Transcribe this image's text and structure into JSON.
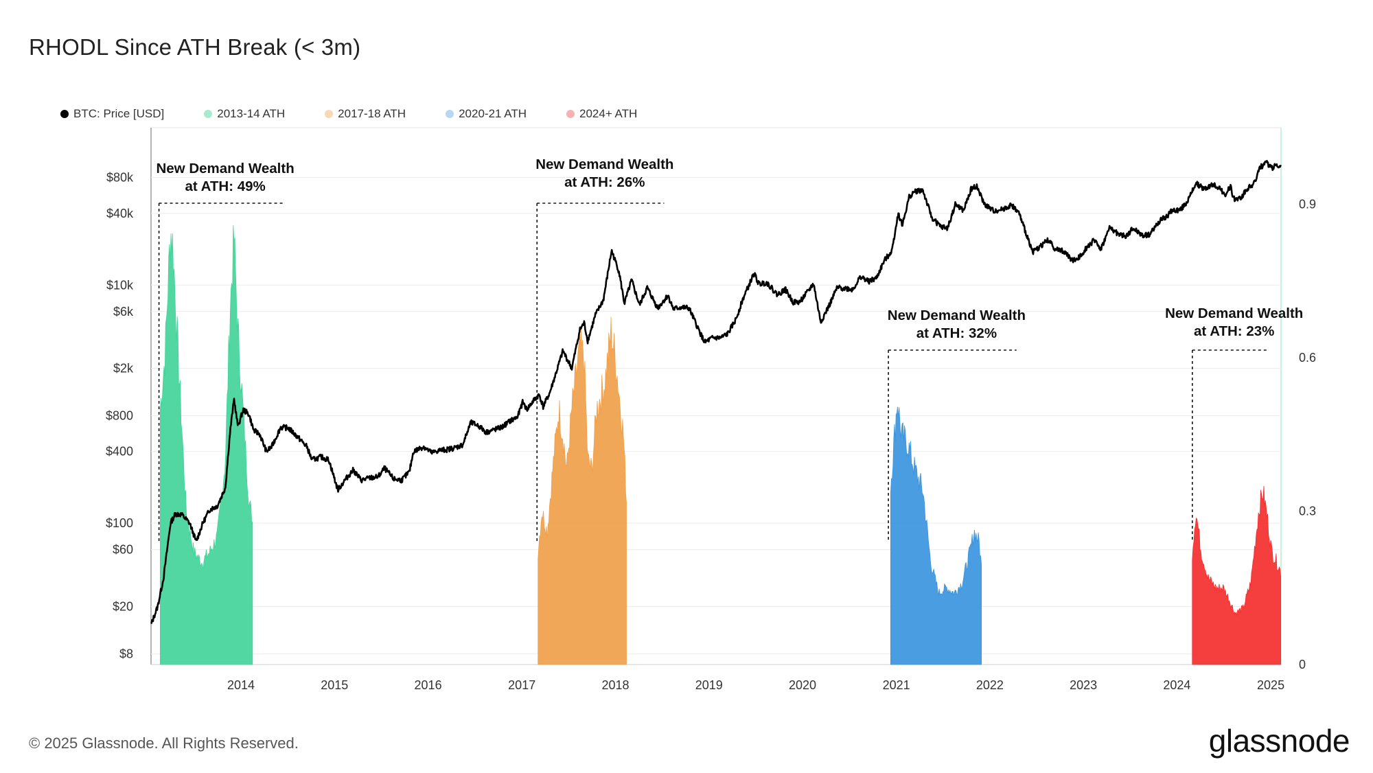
{
  "header": {
    "title": "RHODL Since ATH Break (< 3m)"
  },
  "legend": [
    {
      "label": "BTC: Price [USD]",
      "color": "#000000"
    },
    {
      "label": "2013-14 ATH",
      "color": "#a7ead0"
    },
    {
      "label": "2017-18 ATH",
      "color": "#f8d9b3"
    },
    {
      "label": "2020-21 ATH",
      "color": "#b6d7f0"
    },
    {
      "label": "2024+ ATH",
      "color": "#f6b1b1"
    }
  ],
  "footer": {
    "copyright": "© 2025 Glassnode. All Rights Reserved.",
    "brand": "glassnode"
  },
  "chart_data": {
    "type": "line",
    "x_range": [
      "2013-01-15",
      "2025-02-10"
    ],
    "x_ticks": [
      "2014",
      "2015",
      "2016",
      "2017",
      "2018",
      "2019",
      "2020",
      "2021",
      "2022",
      "2023",
      "2024",
      "2025"
    ],
    "y_left": {
      "label": "BTC: Price [USD]",
      "scale": "log",
      "ticks": [
        "$8",
        "$20",
        "$60",
        "$100",
        "$400",
        "$800",
        "$2k",
        "$6k",
        "$10k",
        "$40k",
        "$80k"
      ],
      "tick_values": [
        8,
        20,
        60,
        100,
        400,
        800,
        2000,
        6000,
        10000,
        40000,
        80000
      ]
    },
    "y_right": {
      "scale": "linear",
      "ticks": [
        "0",
        "0.3",
        "0.6",
        "0.9"
      ],
      "tick_values": [
        0,
        0.3,
        0.6,
        0.9
      ]
    },
    "price_series": {
      "name": "BTC: Price [USD]",
      "color": "#000000",
      "points": [
        [
          "2013-01-15",
          14
        ],
        [
          "2013-02-10",
          20
        ],
        [
          "2013-03-05",
          35
        ],
        [
          "2013-04-01",
          100
        ],
        [
          "2013-04-20",
          120
        ],
        [
          "2013-05-15",
          118
        ],
        [
          "2013-06-15",
          100
        ],
        [
          "2013-07-10",
          70
        ],
        [
          "2013-08-05",
          100
        ],
        [
          "2013-09-01",
          130
        ],
        [
          "2013-10-01",
          140
        ],
        [
          "2013-11-01",
          200
        ],
        [
          "2013-11-20",
          600
        ],
        [
          "2013-12-05",
          1100
        ],
        [
          "2013-12-20",
          650
        ],
        [
          "2014-01-10",
          900
        ],
        [
          "2014-02-01",
          820
        ],
        [
          "2014-02-20",
          600
        ],
        [
          "2014-03-15",
          560
        ],
        [
          "2014-04-10",
          400
        ],
        [
          "2014-05-01",
          440
        ],
        [
          "2014-06-05",
          640
        ],
        [
          "2014-07-05",
          630
        ],
        [
          "2014-08-10",
          530
        ],
        [
          "2014-09-15",
          440
        ],
        [
          "2014-10-05",
          340
        ],
        [
          "2014-11-10",
          360
        ],
        [
          "2014-12-10",
          340
        ],
        [
          "2015-01-14",
          190
        ],
        [
          "2015-02-10",
          230
        ],
        [
          "2015-03-15",
          280
        ],
        [
          "2015-04-15",
          230
        ],
        [
          "2015-05-20",
          240
        ],
        [
          "2015-06-20",
          245
        ],
        [
          "2015-07-15",
          290
        ],
        [
          "2015-08-20",
          235
        ],
        [
          "2015-09-20",
          230
        ],
        [
          "2015-10-20",
          270
        ],
        [
          "2015-11-05",
          400
        ],
        [
          "2015-12-15",
          440
        ],
        [
          "2016-01-15",
          390
        ],
        [
          "2016-02-15",
          410
        ],
        [
          "2016-03-15",
          415
        ],
        [
          "2016-04-15",
          430
        ],
        [
          "2016-05-15",
          455
        ],
        [
          "2016-06-16",
          700
        ],
        [
          "2016-07-15",
          660
        ],
        [
          "2016-08-15",
          580
        ],
        [
          "2016-09-15",
          610
        ],
        [
          "2016-10-15",
          640
        ],
        [
          "2016-11-15",
          720
        ],
        [
          "2016-12-15",
          780
        ],
        [
          "2017-01-05",
          1050
        ],
        [
          "2017-01-20",
          900
        ],
        [
          "2017-02-20",
          1100
        ],
        [
          "2017-03-10",
          1200
        ],
        [
          "2017-03-25",
          950
        ],
        [
          "2017-04-20",
          1250
        ],
        [
          "2017-05-20",
          2000
        ],
        [
          "2017-06-10",
          2800
        ],
        [
          "2017-07-15",
          2000
        ],
        [
          "2017-08-15",
          4200
        ],
        [
          "2017-09-01",
          4800
        ],
        [
          "2017-09-15",
          3400
        ],
        [
          "2017-10-15",
          5600
        ],
        [
          "2017-11-15",
          7500
        ],
        [
          "2017-12-17",
          19500
        ],
        [
          "2018-01-15",
          13000
        ],
        [
          "2018-02-05",
          7000
        ],
        [
          "2018-03-05",
          11000
        ],
        [
          "2018-04-05",
          6800
        ],
        [
          "2018-05-05",
          9500
        ],
        [
          "2018-06-15",
          6400
        ],
        [
          "2018-07-25",
          8200
        ],
        [
          "2018-08-15",
          6300
        ],
        [
          "2018-09-15",
          6500
        ],
        [
          "2018-10-15",
          6400
        ],
        [
          "2018-11-20",
          4300
        ],
        [
          "2018-12-15",
          3300
        ],
        [
          "2019-01-15",
          3600
        ],
        [
          "2019-02-15",
          3600
        ],
        [
          "2019-03-15",
          3900
        ],
        [
          "2019-04-15",
          5100
        ],
        [
          "2019-05-15",
          7800
        ],
        [
          "2019-06-26",
          12500
        ],
        [
          "2019-07-15",
          10200
        ],
        [
          "2019-08-15",
          10500
        ],
        [
          "2019-09-25",
          8300
        ],
        [
          "2019-10-26",
          9200
        ],
        [
          "2019-11-25",
          7200
        ],
        [
          "2019-12-20",
          7200
        ],
        [
          "2020-01-20",
          8700
        ],
        [
          "2020-02-13",
          10300
        ],
        [
          "2020-03-12",
          4900
        ],
        [
          "2020-04-15",
          6800
        ],
        [
          "2020-05-15",
          9500
        ],
        [
          "2020-06-15",
          9400
        ],
        [
          "2020-07-15",
          9200
        ],
        [
          "2020-08-15",
          11800
        ],
        [
          "2020-09-15",
          10700
        ],
        [
          "2020-10-15",
          11400
        ],
        [
          "2020-11-15",
          16000
        ],
        [
          "2020-12-15",
          19500
        ],
        [
          "2021-01-08",
          40000
        ],
        [
          "2021-01-25",
          32000
        ],
        [
          "2021-02-20",
          55000
        ],
        [
          "2021-03-13",
          61000
        ],
        [
          "2021-04-14",
          63000
        ],
        [
          "2021-05-19",
          37000
        ],
        [
          "2021-06-22",
          31000
        ],
        [
          "2021-07-20",
          30000
        ],
        [
          "2021-08-20",
          48000
        ],
        [
          "2021-09-20",
          42000
        ],
        [
          "2021-10-20",
          64000
        ],
        [
          "2021-11-10",
          68000
        ],
        [
          "2021-12-10",
          48000
        ],
        [
          "2022-01-15",
          42000
        ],
        [
          "2022-02-15",
          43000
        ],
        [
          "2022-03-28",
          47000
        ],
        [
          "2022-04-25",
          40000
        ],
        [
          "2022-05-15",
          30000
        ],
        [
          "2022-06-18",
          19000
        ],
        [
          "2022-07-15",
          21000
        ],
        [
          "2022-08-15",
          24000
        ],
        [
          "2022-09-15",
          20000
        ],
        [
          "2022-10-15",
          19300
        ],
        [
          "2022-11-21",
          16000
        ],
        [
          "2022-12-15",
          17000
        ],
        [
          "2023-01-15",
          21000
        ],
        [
          "2023-02-15",
          24000
        ],
        [
          "2023-03-10",
          20000
        ],
        [
          "2023-04-14",
          30500
        ],
        [
          "2023-05-15",
          27000
        ],
        [
          "2023-06-15",
          25500
        ],
        [
          "2023-07-15",
          30000
        ],
        [
          "2023-08-20",
          26000
        ],
        [
          "2023-09-15",
          26500
        ],
        [
          "2023-10-25",
          34500
        ],
        [
          "2023-11-20",
          37500
        ],
        [
          "2023-12-15",
          42500
        ],
        [
          "2024-01-15",
          43000
        ],
        [
          "2024-02-15",
          52000
        ],
        [
          "2024-03-14",
          72000
        ],
        [
          "2024-04-15",
          64000
        ],
        [
          "2024-05-20",
          70000
        ],
        [
          "2024-06-15",
          66000
        ],
        [
          "2024-07-05",
          56000
        ],
        [
          "2024-07-29",
          69000
        ],
        [
          "2024-08-05",
          53000
        ],
        [
          "2024-09-06",
          54000
        ],
        [
          "2024-09-30",
          64000
        ],
        [
          "2024-10-29",
          72000
        ],
        [
          "2024-11-12",
          88000
        ],
        [
          "2024-11-22",
          98000
        ],
        [
          "2024-12-17",
          106000
        ],
        [
          "2025-01-10",
          94000
        ],
        [
          "2025-01-20",
          106000
        ],
        [
          "2025-02-10",
          97000
        ]
      ]
    },
    "rhodl_series": [
      {
        "name": "2013-14 ATH",
        "color": "#43d39a",
        "points": [
          [
            "2013-02-20",
            0.5
          ],
          [
            "2013-03-10",
            0.6
          ],
          [
            "2013-04-01",
            0.85
          ],
          [
            "2013-04-10",
            0.82
          ],
          [
            "2013-05-01",
            0.6
          ],
          [
            "2013-06-01",
            0.3
          ],
          [
            "2013-07-01",
            0.22
          ],
          [
            "2013-08-01",
            0.2
          ],
          [
            "2013-09-01",
            0.22
          ],
          [
            "2013-10-01",
            0.25
          ],
          [
            "2013-11-01",
            0.4
          ],
          [
            "2013-11-20",
            0.7
          ],
          [
            "2013-12-05",
            0.83
          ],
          [
            "2013-12-20",
            0.65
          ],
          [
            "2014-01-15",
            0.45
          ],
          [
            "2014-02-01",
            0.32
          ],
          [
            "2014-02-15",
            0.28
          ]
        ]
      },
      {
        "name": "2017-18 ATH",
        "color": "#f0a04a",
        "points": [
          [
            "2017-03-05",
            0.22
          ],
          [
            "2017-03-20",
            0.3
          ],
          [
            "2017-04-10",
            0.26
          ],
          [
            "2017-05-01",
            0.38
          ],
          [
            "2017-05-25",
            0.5
          ],
          [
            "2017-06-10",
            0.45
          ],
          [
            "2017-06-25",
            0.38
          ],
          [
            "2017-07-15",
            0.5
          ],
          [
            "2017-08-15",
            0.62
          ],
          [
            "2017-09-01",
            0.6
          ],
          [
            "2017-09-15",
            0.4
          ],
          [
            "2017-10-01",
            0.38
          ],
          [
            "2017-10-20",
            0.5
          ],
          [
            "2017-11-20",
            0.55
          ],
          [
            "2017-12-15",
            0.65
          ],
          [
            "2018-01-01",
            0.6
          ],
          [
            "2018-02-01",
            0.45
          ],
          [
            "2018-02-15",
            0.3
          ]
        ]
      },
      {
        "name": "2020-21 ATH",
        "color": "#3a95dd",
        "points": [
          [
            "2020-12-10",
            0.35
          ],
          [
            "2021-01-05",
            0.52
          ],
          [
            "2021-01-20",
            0.45
          ],
          [
            "2021-02-15",
            0.43
          ],
          [
            "2021-03-15",
            0.38
          ],
          [
            "2021-04-15",
            0.34
          ],
          [
            "2021-05-15",
            0.2
          ],
          [
            "2021-06-15",
            0.14
          ],
          [
            "2021-07-15",
            0.15
          ],
          [
            "2021-08-15",
            0.14
          ],
          [
            "2021-09-15",
            0.16
          ],
          [
            "2021-10-15",
            0.22
          ],
          [
            "2021-11-01",
            0.26
          ],
          [
            "2021-11-20",
            0.24
          ],
          [
            "2021-12-01",
            0.18
          ]
        ]
      },
      {
        "name": "2024+ ATH",
        "color": "#f42e2e",
        "points": [
          [
            "2024-03-01",
            0.22
          ],
          [
            "2024-03-15",
            0.3
          ],
          [
            "2024-04-05",
            0.22
          ],
          [
            "2024-05-01",
            0.17
          ],
          [
            "2024-06-01",
            0.15
          ],
          [
            "2024-07-01",
            0.15
          ],
          [
            "2024-07-20",
            0.13
          ],
          [
            "2024-08-15",
            0.1
          ],
          [
            "2024-09-15",
            0.11
          ],
          [
            "2024-10-15",
            0.16
          ],
          [
            "2024-11-15",
            0.3
          ],
          [
            "2024-12-01",
            0.34
          ],
          [
            "2024-12-15",
            0.3
          ],
          [
            "2025-01-05",
            0.22
          ],
          [
            "2025-01-25",
            0.2
          ],
          [
            "2025-02-10",
            0.18
          ]
        ]
      }
    ],
    "annotations": [
      {
        "text": "New Demand Wealth",
        "text2": "at ATH: 49%",
        "start": "2013-02-15",
        "end": "2014-06-15"
      },
      {
        "text": "New Demand Wealth",
        "text2": "at ATH: 26%",
        "start": "2017-03-01",
        "end": "2018-07-10"
      },
      {
        "text": "New Demand Wealth",
        "text2": "at ATH: 32%",
        "start": "2020-12-01",
        "end": "2022-04-15"
      },
      {
        "text": "New Demand Wealth",
        "text2": "at ATH: 23%",
        "start": "2024-03-01",
        "end": "2024-12-20"
      }
    ],
    "grid": true,
    "legend_position": "top-left"
  }
}
